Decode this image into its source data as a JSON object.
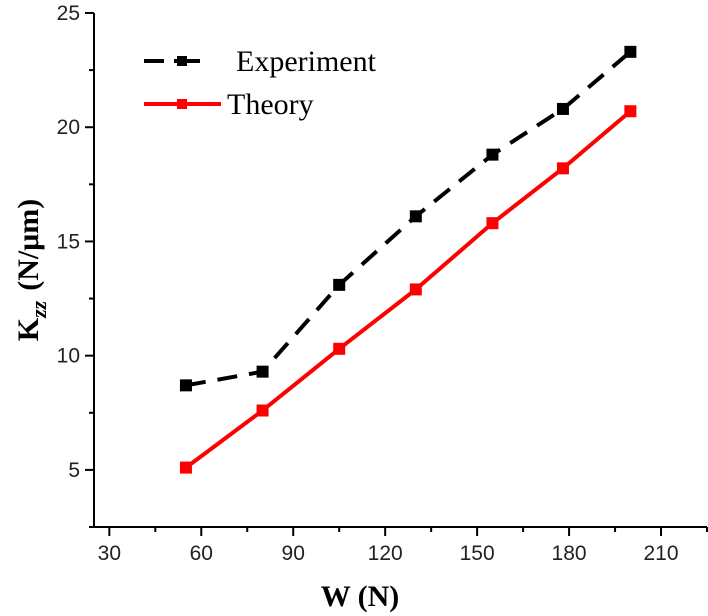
{
  "chart_data": {
    "type": "line",
    "title": "",
    "xlabel": "W (N)",
    "ylabel": {
      "main": "K",
      "subscript": "zz",
      "units": "(N/μm)"
    },
    "xlim": [
      25,
      225
    ],
    "ylim": [
      2.5,
      25
    ],
    "x_ticks": [
      30,
      60,
      90,
      120,
      150,
      180,
      210
    ],
    "x_tick_labels": [
      "30",
      "60",
      "90",
      "120",
      "150",
      "180",
      "210"
    ],
    "y_ticks": [
      5,
      10,
      15,
      20,
      25
    ],
    "y_tick_labels": [
      "5",
      "10",
      "15",
      "20",
      "25"
    ],
    "grid": false,
    "legend_position": "top-left",
    "x": [
      55,
      80,
      105,
      130,
      155,
      178,
      200
    ],
    "series": [
      {
        "name": "Experiment",
        "color": "#000000",
        "line_style": "dashed",
        "marker": "square",
        "values": [
          8.7,
          9.3,
          13.1,
          16.1,
          18.8,
          20.8,
          23.3
        ]
      },
      {
        "name": "Theory",
        "color": "#ff0000",
        "line_style": "solid",
        "marker": "square",
        "values": [
          5.1,
          7.6,
          10.3,
          12.9,
          15.8,
          18.2,
          20.7
        ]
      }
    ]
  }
}
